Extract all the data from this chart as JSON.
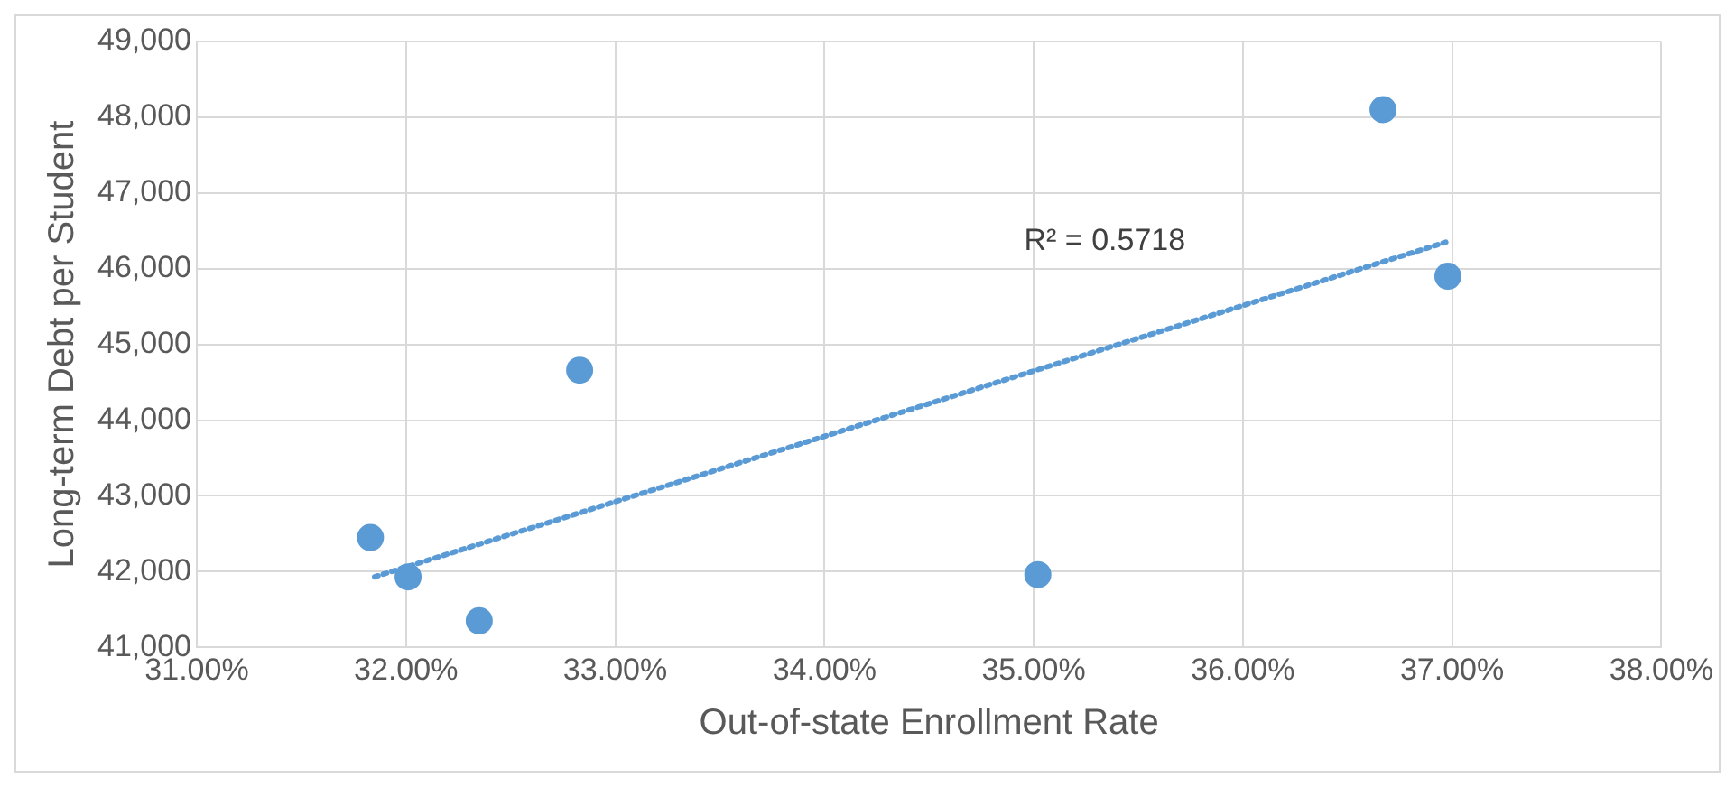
{
  "chart_data": {
    "type": "scatter",
    "xlabel": "Out-of-state Enrollment Rate",
    "ylabel": "Long-term Debt per Student",
    "series": [
      {
        "type": "scatter",
        "color": "#5b9bd5",
        "marker": "circle",
        "x": [
          31.83,
          32.01,
          32.35,
          32.83,
          35.02,
          36.67,
          36.98
        ],
        "values": [
          42450,
          41930,
          41350,
          44660,
          41960,
          48100,
          45900
        ]
      },
      {
        "type": "line",
        "color": "#5b9bd5",
        "marker": "none",
        "line_style": "dotted",
        "x": [
          31.85,
          36.97
        ],
        "values": [
          41930,
          46350
        ]
      }
    ],
    "annotations": [
      "R² = 0.5718"
    ],
    "xlim": [
      31,
      38
    ],
    "xticks": [
      {
        "value": 31,
        "label": "31.00%"
      },
      {
        "value": 32,
        "label": "32.00%"
      },
      {
        "value": 33,
        "label": "33.00%"
      },
      {
        "value": 34,
        "label": "34.00%"
      },
      {
        "value": 35,
        "label": "35.00%"
      },
      {
        "value": 36,
        "label": "36.00%"
      },
      {
        "value": 37,
        "label": "37.00%"
      },
      {
        "value": 38,
        "label": "38.00%"
      }
    ],
    "ylim": [
      41000,
      49000
    ],
    "yticks": [
      {
        "value": 41000,
        "label": "41,000"
      },
      {
        "value": 42000,
        "label": "42,000"
      },
      {
        "value": 43000,
        "label": "43,000"
      },
      {
        "value": 44000,
        "label": "44,000"
      },
      {
        "value": 45000,
        "label": "45,000"
      },
      {
        "value": 46000,
        "label": "46,000"
      },
      {
        "value": 47000,
        "label": "47,000"
      },
      {
        "value": 48000,
        "label": "48,000"
      },
      {
        "value": 49000,
        "label": "49,000"
      }
    ],
    "grid": true,
    "legend": false
  }
}
